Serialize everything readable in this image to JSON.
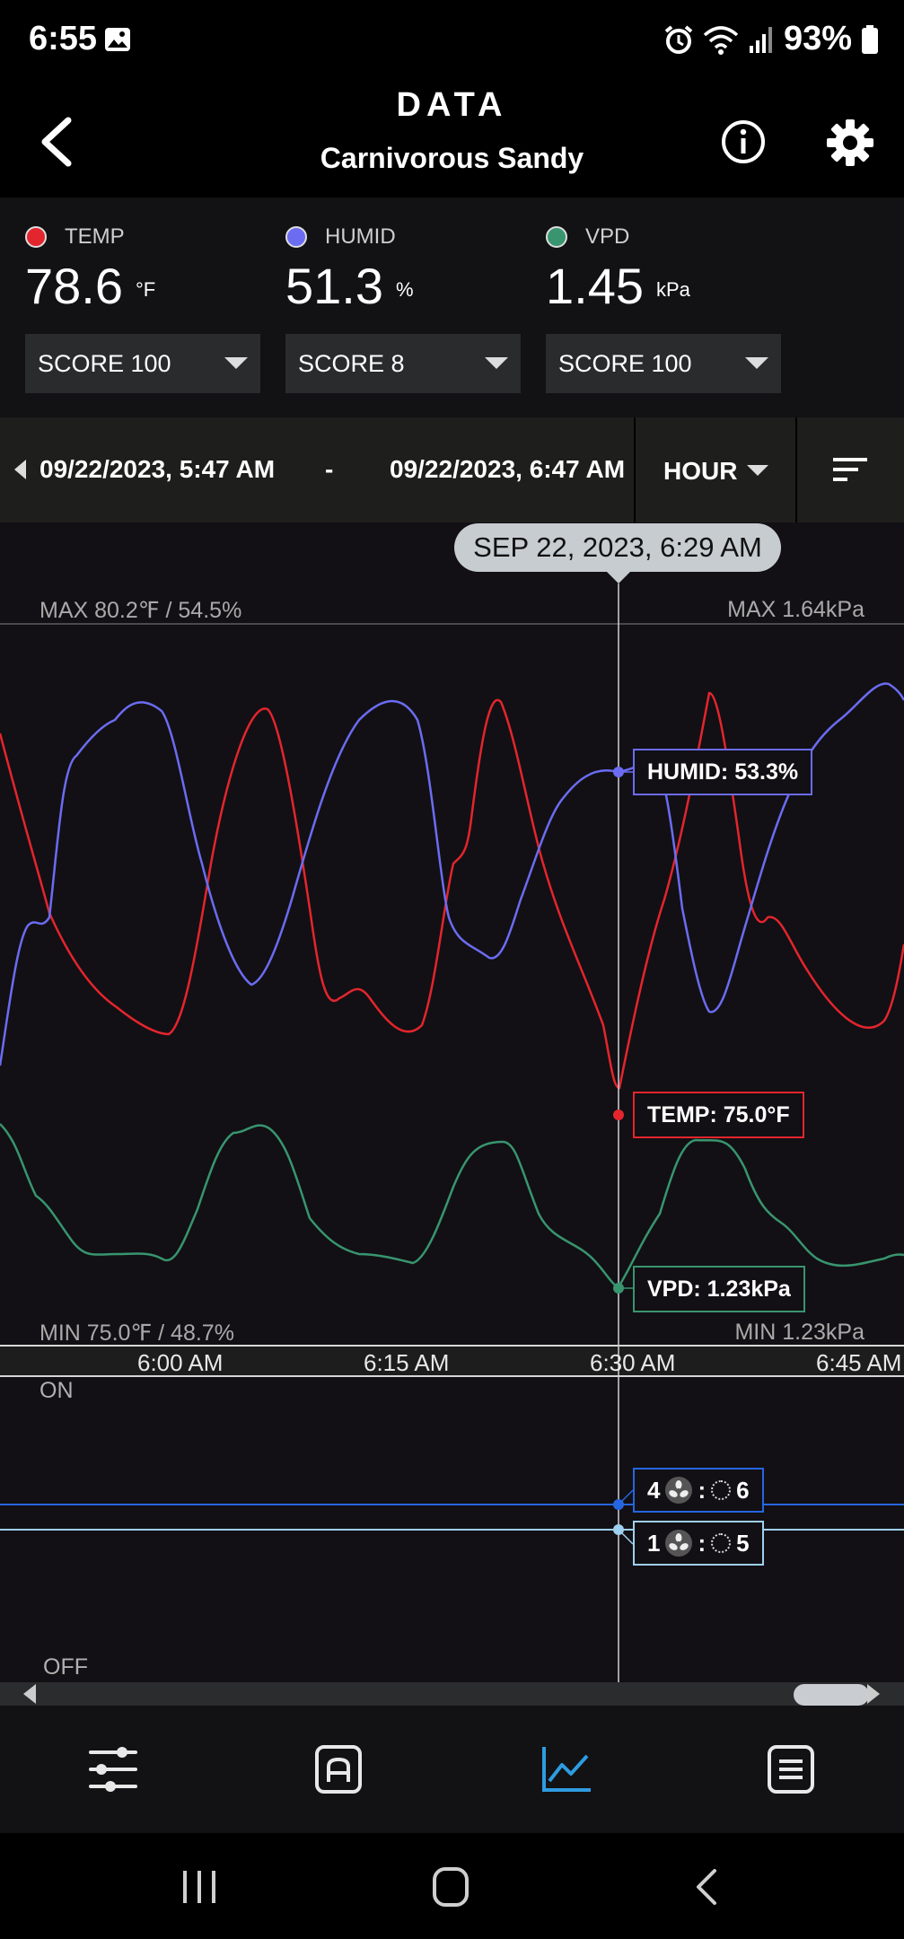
{
  "status_bar": {
    "time": "6:55",
    "battery": "93%",
    "icons": [
      "gallery-icon",
      "alarm-icon",
      "wifi-icon",
      "signal-icon",
      "battery-icon"
    ]
  },
  "header": {
    "title": "DATA",
    "subtitle": "Carnivorous Sandy",
    "icons": [
      "back-arrow-icon",
      "info-icon",
      "gear-icon"
    ]
  },
  "metrics": [
    {
      "label": "TEMP",
      "value": "78.6",
      "unit": "°F",
      "color": "#e3252d",
      "score": "SCORE 100"
    },
    {
      "label": "HUMID",
      "value": "51.3",
      "unit": "%",
      "color": "#6b6cf2",
      "score": "SCORE 8"
    },
    {
      "label": "VPD",
      "value": "1.45",
      "unit": "kPa",
      "color": "#38956f",
      "score": "SCORE 100"
    }
  ],
  "range": {
    "start": "09/22/2023, 5:47 AM",
    "separator": "-",
    "end": "09/22/2023, 6:47 AM",
    "interval": "HOUR"
  },
  "chart": {
    "tooltip_date": "SEP 22, 2023, 6:29 AM",
    "max_left": "MAX 80.2℉ / 54.5%",
    "max_right": "MAX 1.64kPa",
    "min_left": "MIN 75.0℉ / 48.7%",
    "min_right": "MIN 1.23kPa",
    "humid_value": "HUMID: 53.3%",
    "temp_value": "TEMP: 75.0°F",
    "vpd_value": "VPD: 1.23kPa",
    "on_label": "ON",
    "off_label": "OFF",
    "fan1": {
      "left": "4",
      "sep": ":",
      "right": "6"
    },
    "fan2": {
      "left": "1",
      "sep": ":",
      "right": "5"
    }
  },
  "chart_data": {
    "type": "line",
    "x_ticks": [
      "6:00 AM",
      "6:15 AM",
      "6:30 AM",
      "6:45 AM"
    ],
    "series": [
      {
        "name": "TEMP",
        "color": "#e3252d"
      },
      {
        "name": "HUMID",
        "color": "#6b6cf2"
      },
      {
        "name": "VPD",
        "color": "#38956f"
      }
    ],
    "grid": false,
    "legend": "top"
  },
  "bottom_nav": {
    "items": [
      "sliders-icon",
      "auto-mode-icon",
      "chart-icon",
      "log-list-icon"
    ],
    "active": "chart-icon",
    "active_color": "#2e9be0"
  },
  "system_nav": {
    "items": [
      "recent-apps-icon",
      "home-icon",
      "back-icon"
    ]
  }
}
